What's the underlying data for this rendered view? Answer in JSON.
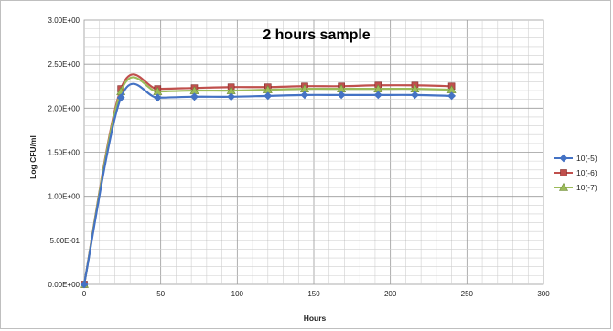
{
  "chart_data": {
    "type": "line",
    "title": "2 hours sample",
    "xlabel": "Hours",
    "ylabel": "Log CFU/ml",
    "xlim": [
      0,
      300
    ],
    "ylim": [
      0,
      3
    ],
    "x_ticks": [
      0,
      50,
      100,
      150,
      200,
      250,
      300
    ],
    "x_tick_labels": [
      "0",
      "50",
      "100",
      "150",
      "200",
      "250",
      "300"
    ],
    "y_ticks": [
      0,
      0.5,
      1,
      1.5,
      2,
      2.5,
      3
    ],
    "y_tick_labels": [
      "0.00E+00",
      "5.00E-01",
      "1.00E+00",
      "1.50E+00",
      "2.00E+00",
      "2.50E+00",
      "3.00E+00"
    ],
    "grid": true,
    "legend_position": "right",
    "x": [
      0,
      24,
      48,
      72,
      96,
      120,
      144,
      168,
      192,
      216,
      240
    ],
    "series": [
      {
        "name": "10(-5)",
        "color": "#4472c4",
        "marker": "diamond",
        "values": [
          0,
          2.12,
          2.12,
          2.13,
          2.13,
          2.14,
          2.15,
          2.15,
          2.15,
          2.15,
          2.14
        ]
      },
      {
        "name": "10(-6)",
        "color": "#c0504d",
        "marker": "square",
        "values": [
          0,
          2.22,
          2.22,
          2.23,
          2.24,
          2.24,
          2.25,
          2.25,
          2.26,
          2.26,
          2.25
        ]
      },
      {
        "name": "10(-7)",
        "color": "#9bbb59",
        "marker": "triangle",
        "values": [
          0,
          2.19,
          2.19,
          2.2,
          2.2,
          2.21,
          2.22,
          2.22,
          2.22,
          2.22,
          2.21
        ]
      }
    ]
  }
}
